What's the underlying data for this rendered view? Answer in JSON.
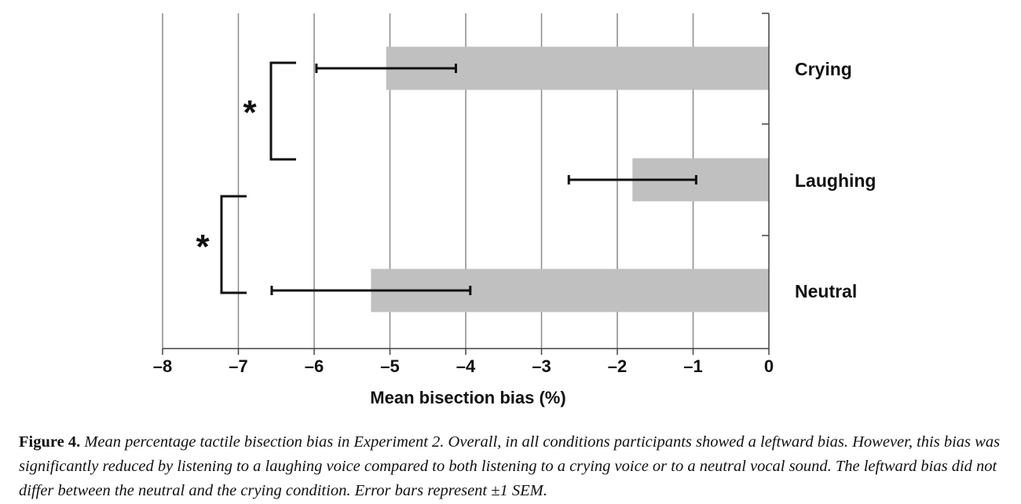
{
  "chart_data": {
    "type": "bar",
    "orientation": "horizontal",
    "categories": [
      "Crying",
      "Laughing",
      "Neutral"
    ],
    "values": [
      -5.05,
      -1.8,
      -5.25
    ],
    "error_bars": [
      0.92,
      0.84,
      1.31
    ],
    "xlabel": "Mean bisection bias (%)",
    "ylabel": "",
    "xlim": [
      -8,
      0
    ],
    "xticks": [
      -8,
      -7,
      -6,
      -5,
      -4,
      -3,
      -2,
      -1,
      0
    ],
    "xtick_labels": [
      "–8",
      "–7",
      "–6",
      "–5",
      "–4",
      "–3",
      "–2",
      "–1",
      "0"
    ],
    "grid": "vertical",
    "colors": {
      "bar": "#c0c0c0",
      "grid": "#8a8a8a",
      "ink": "#111111"
    },
    "significance": [
      {
        "between": [
          "Crying",
          "Laughing"
        ],
        "label": "*"
      },
      {
        "between": [
          "Laughing",
          "Neutral"
        ],
        "label": "*"
      }
    ]
  },
  "caption": {
    "label": "Figure 4.",
    "text": "Mean percentage tactile bisection bias in Experiment 2. Overall, in all conditions participants showed a leftward bias. However, this bias was significantly reduced by listening to a laughing voice compared to both listening to a crying voice or to a neutral vocal sound. The leftward bias did not differ between the neutral and the crying condition. Error bars represent ±1 SEM."
  }
}
